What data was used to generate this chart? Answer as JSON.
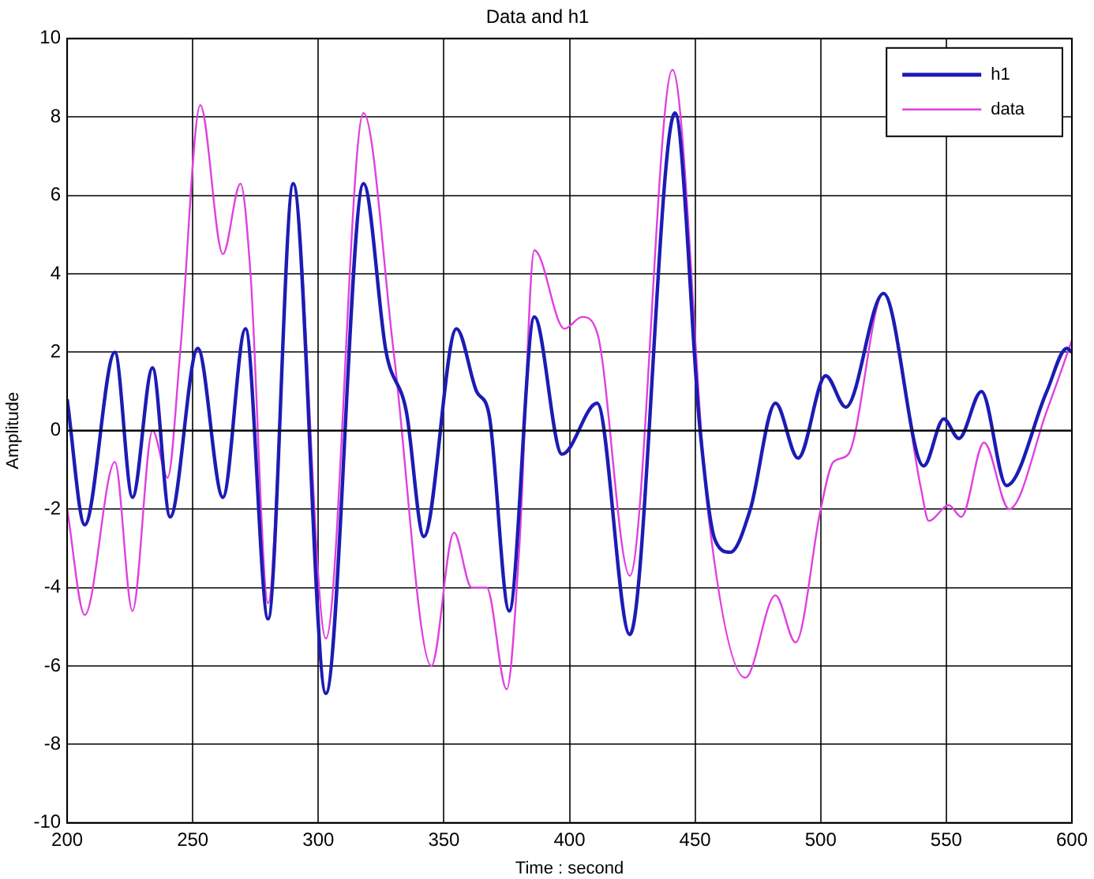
{
  "chart_data": {
    "type": "line",
    "title": "Data and h1",
    "xlabel": "Time : second",
    "ylabel": "Amplitude",
    "xlim": [
      200,
      600
    ],
    "xticks": [
      200,
      250,
      300,
      350,
      400,
      450,
      500,
      550,
      600
    ],
    "ylim": [
      -10,
      10
    ],
    "yticks": [
      -10,
      -8,
      -6,
      -4,
      -2,
      0,
      2,
      4,
      6,
      8,
      10
    ],
    "grid": true,
    "legend": "top right",
    "ref_lines": [
      {
        "axis": "y",
        "value": 0,
        "color": "#000000"
      }
    ],
    "series": [
      {
        "name": "h1",
        "color": "#1c1cb4",
        "x": [
          200,
          207,
          219,
          226,
          234,
          241,
          252,
          262,
          271,
          280,
          290,
          303,
          318,
          327,
          335,
          342,
          355,
          363,
          368,
          376,
          386,
          397,
          411,
          424,
          442,
          452,
          458,
          464,
          472,
          482,
          491,
          502,
          510,
          525,
          541,
          549,
          555,
          564,
          574,
          590,
          598,
          600
        ],
        "values": [
          0.8,
          -2.4,
          2.0,
          -1.7,
          1.6,
          -2.2,
          2.1,
          -1.7,
          2.6,
          -4.8,
          6.3,
          -6.7,
          6.3,
          2.0,
          0.5,
          -2.7,
          2.6,
          1.0,
          0.4,
          -4.6,
          2.9,
          -0.6,
          0.7,
          -5.2,
          8.1,
          0.0,
          -2.8,
          -3.1,
          -2.0,
          0.7,
          -0.7,
          1.4,
          0.6,
          3.5,
          -0.9,
          0.3,
          -0.2,
          1.0,
          -1.4,
          1.0,
          2.1,
          2.0
        ]
      },
      {
        "name": "data",
        "color": "#e040e0",
        "x": [
          200,
          207,
          219,
          226,
          234,
          240,
          245,
          253,
          262,
          269,
          273,
          280,
          290,
          303,
          318,
          330,
          345,
          354,
          361,
          367,
          375,
          380,
          386,
          398,
          405,
          411,
          424,
          441,
          455,
          470,
          482,
          490,
          500,
          505,
          511,
          525,
          540,
          543,
          551,
          556,
          565,
          575,
          590,
          600
        ],
        "values": [
          -2.0,
          -4.7,
          -0.8,
          -4.6,
          0.0,
          -1.2,
          2.0,
          8.3,
          4.5,
          6.3,
          4.0,
          -4.4,
          6.3,
          -5.3,
          8.1,
          2.0,
          -6.0,
          -2.6,
          -4.0,
          -4.0,
          -6.6,
          -3.0,
          4.6,
          2.6,
          2.9,
          2.5,
          -3.7,
          9.2,
          -2.0,
          -6.3,
          -4.2,
          -5.4,
          -2.0,
          -0.8,
          -0.6,
          3.5,
          -1.5,
          -2.3,
          -1.9,
          -2.2,
          -0.3,
          -2.0,
          0.5,
          2.3
        ]
      }
    ]
  }
}
